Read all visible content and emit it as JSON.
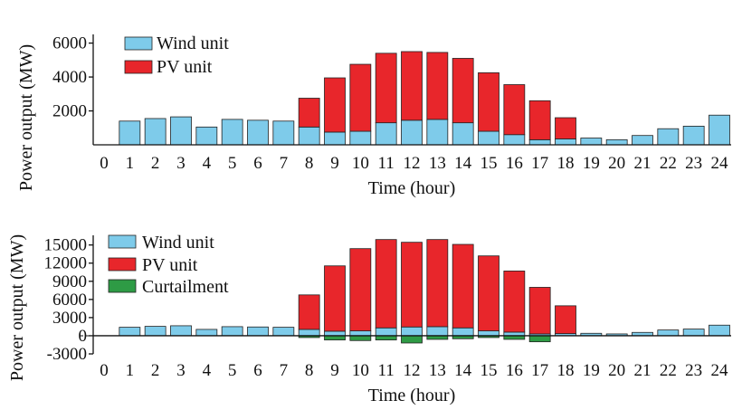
{
  "colors": {
    "wind": "#7ecbea",
    "pv": "#e8262b",
    "curtailment": "#2e9b45"
  },
  "chart_data": [
    {
      "type": "bar",
      "stacked": true,
      "xlabel": "Time (hour)",
      "ylabel": "Power output (MW)",
      "x_ticks": [
        "0",
        "1",
        "2",
        "3",
        "4",
        "5",
        "6",
        "7",
        "8",
        "9",
        "10",
        "11",
        "12",
        "13",
        "14",
        "15",
        "16",
        "17",
        "18",
        "19",
        "20",
        "21",
        "22",
        "23",
        "24"
      ],
      "y_ticks": [
        "2000",
        "4000",
        "6000"
      ],
      "ylim": [
        0,
        6300
      ],
      "legend": [
        "Wind unit",
        "PV unit"
      ],
      "legend_position": "top-left",
      "categories": [
        "1",
        "2",
        "3",
        "4",
        "5",
        "6",
        "7",
        "8",
        "9",
        "10",
        "11",
        "12",
        "13",
        "14",
        "15",
        "16",
        "17",
        "18",
        "19",
        "20",
        "21",
        "22",
        "23",
        "24"
      ],
      "series": [
        {
          "name": "Wind unit",
          "values": [
            1400,
            1550,
            1650,
            1050,
            1500,
            1450,
            1400,
            1050,
            750,
            800,
            1300,
            1450,
            1500,
            1300,
            800,
            600,
            300,
            350,
            400,
            300,
            550,
            950,
            1100,
            1750
          ]
        },
        {
          "name": "PV unit",
          "values": [
            0,
            0,
            0,
            0,
            0,
            0,
            0,
            1700,
            3200,
            3950,
            4100,
            4050,
            3950,
            3800,
            3450,
            2950,
            2300,
            1250,
            0,
            0,
            0,
            0,
            0,
            0
          ]
        }
      ]
    },
    {
      "type": "bar",
      "stacked": true,
      "xlabel": "Time (hour)",
      "ylabel": "Power output (MW)",
      "x_ticks": [
        "0",
        "1",
        "2",
        "3",
        "4",
        "5",
        "6",
        "7",
        "8",
        "9",
        "10",
        "11",
        "12",
        "13",
        "14",
        "15",
        "16",
        "17",
        "18",
        "19",
        "20",
        "21",
        "22",
        "23",
        "24"
      ],
      "y_ticks": [
        "-3000",
        "0",
        "3000",
        "6000",
        "9000",
        "12000",
        "15000"
      ],
      "ylim": [
        -3000,
        16000
      ],
      "legend": [
        "Wind unit",
        "PV unit",
        "Curtailment"
      ],
      "legend_position": "top-left",
      "categories": [
        "1",
        "2",
        "3",
        "4",
        "5",
        "6",
        "7",
        "8",
        "9",
        "10",
        "11",
        "12",
        "13",
        "14",
        "15",
        "16",
        "17",
        "18",
        "19",
        "20",
        "21",
        "22",
        "23",
        "24"
      ],
      "series": [
        {
          "name": "Wind unit",
          "values": [
            1400,
            1550,
            1650,
            1050,
            1500,
            1450,
            1400,
            1050,
            750,
            800,
            1300,
            1450,
            1500,
            1300,
            800,
            600,
            300,
            350,
            400,
            300,
            550,
            950,
            1100,
            1750
          ]
        },
        {
          "name": "PV unit",
          "values": [
            0,
            0,
            0,
            0,
            0,
            0,
            0,
            5700,
            10800,
            13600,
            14600,
            14000,
            14400,
            13800,
            12400,
            10100,
            7700,
            4600,
            0,
            0,
            0,
            0,
            0,
            0
          ]
        },
        {
          "name": "Curtailment",
          "values": [
            0,
            0,
            0,
            0,
            0,
            0,
            0,
            -300,
            -700,
            -800,
            -700,
            -1200,
            -600,
            -500,
            -300,
            -600,
            -1000,
            0,
            0,
            0,
            0,
            0,
            0,
            0
          ]
        }
      ]
    }
  ]
}
